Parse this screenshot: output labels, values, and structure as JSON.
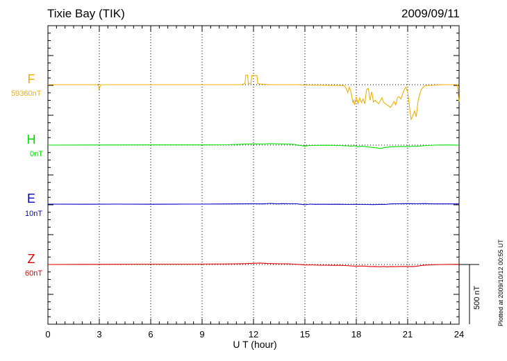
{
  "header": {
    "station": "Tixie Bay (TIK)",
    "date": "2009/09/11"
  },
  "footer": {
    "plotted": "Plotted at 2009/10/12 00:55 UT"
  },
  "scale_bar": {
    "label": "500 nT",
    "value_nT": 500
  },
  "chart_data": {
    "type": "line",
    "title": "Tixie Bay (TIK)",
    "xlabel": "U T (hour)",
    "ylabel": "",
    "xlim": [
      0,
      24
    ],
    "x_ticks": [
      0,
      3,
      6,
      9,
      12,
      15,
      18,
      21,
      24
    ],
    "x_tick_labels": [
      "0",
      "3",
      "6",
      "9",
      "12",
      "15",
      "18",
      "21",
      "24"
    ],
    "grid": true,
    "series": [
      {
        "name": "F",
        "baseline_label": "59360nT",
        "color": "#f0b000",
        "points": [
          [
            0,
            0
          ],
          [
            2.9,
            0
          ],
          [
            2.95,
            -10
          ],
          [
            3,
            -40
          ],
          [
            3.05,
            -8
          ],
          [
            3.1,
            0
          ],
          [
            5,
            0
          ],
          [
            8,
            0
          ],
          [
            10.5,
            0
          ],
          [
            11.3,
            0
          ],
          [
            11.5,
            10
          ],
          [
            11.55,
            80
          ],
          [
            11.65,
            80
          ],
          [
            11.7,
            10
          ],
          [
            11.85,
            10
          ],
          [
            11.9,
            77
          ],
          [
            12,
            77
          ],
          [
            12.2,
            77
          ],
          [
            12.25,
            10
          ],
          [
            12.4,
            5
          ],
          [
            13,
            0
          ],
          [
            14.5,
            0
          ],
          [
            15,
            -3
          ],
          [
            16,
            -4
          ],
          [
            16.5,
            -6
          ],
          [
            17,
            -5
          ],
          [
            17.3,
            -8
          ],
          [
            17.4,
            -30
          ],
          [
            17.5,
            -65
          ],
          [
            17.6,
            -20
          ],
          [
            17.7,
            -70
          ],
          [
            17.8,
            -150
          ],
          [
            17.85,
            -130
          ],
          [
            17.9,
            -170
          ],
          [
            18,
            -100
          ],
          [
            18.1,
            -160
          ],
          [
            18.2,
            -110
          ],
          [
            18.3,
            -150
          ],
          [
            18.4,
            -120
          ],
          [
            18.5,
            -160
          ],
          [
            18.6,
            -40
          ],
          [
            18.7,
            -30
          ],
          [
            18.8,
            -130
          ],
          [
            18.9,
            -60
          ],
          [
            19,
            -145
          ],
          [
            19.1,
            -130
          ],
          [
            19.3,
            -160
          ],
          [
            19.5,
            -110
          ],
          [
            19.6,
            -150
          ],
          [
            19.8,
            -170
          ],
          [
            20,
            -190
          ],
          [
            20.2,
            -140
          ],
          [
            20.3,
            -170
          ],
          [
            20.4,
            -110
          ],
          [
            20.5,
            -100
          ],
          [
            20.6,
            -120
          ],
          [
            20.8,
            -40
          ],
          [
            20.9,
            -20
          ],
          [
            21,
            -60
          ],
          [
            21.1,
            -180
          ],
          [
            21.2,
            -290
          ],
          [
            21.3,
            -260
          ],
          [
            21.4,
            -220
          ],
          [
            21.5,
            -270
          ],
          [
            21.6,
            -140
          ],
          [
            21.7,
            -80
          ],
          [
            21.8,
            -40
          ],
          [
            21.9,
            -20
          ],
          [
            22,
            -10
          ],
          [
            22.2,
            -5
          ],
          [
            22.4,
            -6
          ],
          [
            22.6,
            -3
          ],
          [
            23,
            0
          ],
          [
            23.5,
            0
          ],
          [
            23.9,
            0
          ],
          [
            23.95,
            -80
          ],
          [
            24,
            -140
          ]
        ]
      },
      {
        "name": "H",
        "baseline_label": "0nT",
        "color": "#00e000",
        "points": [
          [
            0,
            0
          ],
          [
            3,
            1
          ],
          [
            6,
            2
          ],
          [
            9,
            2
          ],
          [
            10.5,
            3
          ],
          [
            11.5,
            8
          ],
          [
            12,
            10
          ],
          [
            12.5,
            9
          ],
          [
            13,
            12
          ],
          [
            13.5,
            10
          ],
          [
            14,
            8
          ],
          [
            14.4,
            5
          ],
          [
            14.6,
            -2
          ],
          [
            14.8,
            -4
          ],
          [
            15,
            -10
          ],
          [
            15.2,
            -3
          ],
          [
            15.5,
            -3
          ],
          [
            16,
            -1
          ],
          [
            16.5,
            -2
          ],
          [
            17,
            -3
          ],
          [
            17.3,
            -5
          ],
          [
            17.5,
            -6
          ],
          [
            17.7,
            -10
          ],
          [
            17.9,
            -6
          ],
          [
            18.1,
            -14
          ],
          [
            18.3,
            -8
          ],
          [
            18.5,
            -12
          ],
          [
            18.8,
            -18
          ],
          [
            19,
            -20
          ],
          [
            19.2,
            -24
          ],
          [
            19.4,
            -28
          ],
          [
            19.6,
            -22
          ],
          [
            19.8,
            -18
          ],
          [
            20,
            -15
          ],
          [
            20.3,
            -13
          ],
          [
            20.6,
            -12
          ],
          [
            21,
            -12
          ],
          [
            21.3,
            -10
          ],
          [
            21.6,
            -10
          ],
          [
            21.9,
            -6
          ],
          [
            22.2,
            -3
          ],
          [
            22.6,
            0
          ],
          [
            23,
            1
          ],
          [
            23.5,
            1
          ],
          [
            24,
            0
          ]
        ]
      },
      {
        "name": "E",
        "baseline_label": "10nT",
        "color": "#0000c8",
        "points": [
          [
            0,
            0
          ],
          [
            2,
            -1
          ],
          [
            4,
            0
          ],
          [
            6,
            -1
          ],
          [
            8,
            0
          ],
          [
            9,
            0
          ],
          [
            10,
            1
          ],
          [
            11,
            2
          ],
          [
            12,
            3
          ],
          [
            12.5,
            2
          ],
          [
            13,
            6
          ],
          [
            13.4,
            2
          ],
          [
            13.7,
            4
          ],
          [
            14,
            3
          ],
          [
            14.5,
            3
          ],
          [
            14.8,
            -2
          ],
          [
            15,
            -6
          ],
          [
            15.3,
            0
          ],
          [
            15.6,
            -2
          ],
          [
            16,
            -1
          ],
          [
            16.5,
            -2
          ],
          [
            17,
            -1
          ],
          [
            17.5,
            -3
          ],
          [
            18,
            -2
          ],
          [
            18.5,
            -3
          ],
          [
            19,
            -4
          ],
          [
            19.5,
            -2
          ],
          [
            19.7,
            -3
          ],
          [
            20,
            2
          ],
          [
            20.5,
            3
          ],
          [
            21,
            4
          ],
          [
            21.5,
            3
          ],
          [
            22,
            4
          ],
          [
            22.5,
            2
          ],
          [
            23,
            2
          ],
          [
            24,
            2
          ]
        ]
      },
      {
        "name": "Z",
        "baseline_label": "60nT",
        "color": "#e00000",
        "points": [
          [
            0,
            0
          ],
          [
            2,
            1
          ],
          [
            4,
            2
          ],
          [
            6,
            3
          ],
          [
            8,
            3
          ],
          [
            10,
            4
          ],
          [
            11,
            5
          ],
          [
            11.5,
            7
          ],
          [
            12,
            10
          ],
          [
            12.4,
            12
          ],
          [
            12.8,
            8
          ],
          [
            13.2,
            7
          ],
          [
            13.6,
            6
          ],
          [
            14,
            5
          ],
          [
            14.4,
            3
          ],
          [
            14.8,
            -1
          ],
          [
            15,
            -4
          ],
          [
            15.4,
            -3
          ],
          [
            15.8,
            -5
          ],
          [
            16.2,
            -6
          ],
          [
            16.6,
            -7
          ],
          [
            17,
            -7
          ],
          [
            17.4,
            -9
          ],
          [
            17.7,
            -12
          ],
          [
            18,
            -14
          ],
          [
            18.4,
            -13
          ],
          [
            18.8,
            -17
          ],
          [
            19.1,
            -16
          ],
          [
            19.4,
            -19
          ],
          [
            19.6,
            -16
          ],
          [
            19.8,
            -20
          ],
          [
            20,
            -17
          ],
          [
            20.3,
            -18
          ],
          [
            20.6,
            -16
          ],
          [
            21,
            -16
          ],
          [
            21.3,
            -17
          ],
          [
            21.5,
            -15
          ],
          [
            21.8,
            -8
          ],
          [
            22,
            -5
          ],
          [
            22.5,
            -2
          ],
          [
            23,
            0
          ],
          [
            23.5,
            1
          ],
          [
            24,
            1
          ]
        ]
      }
    ]
  }
}
